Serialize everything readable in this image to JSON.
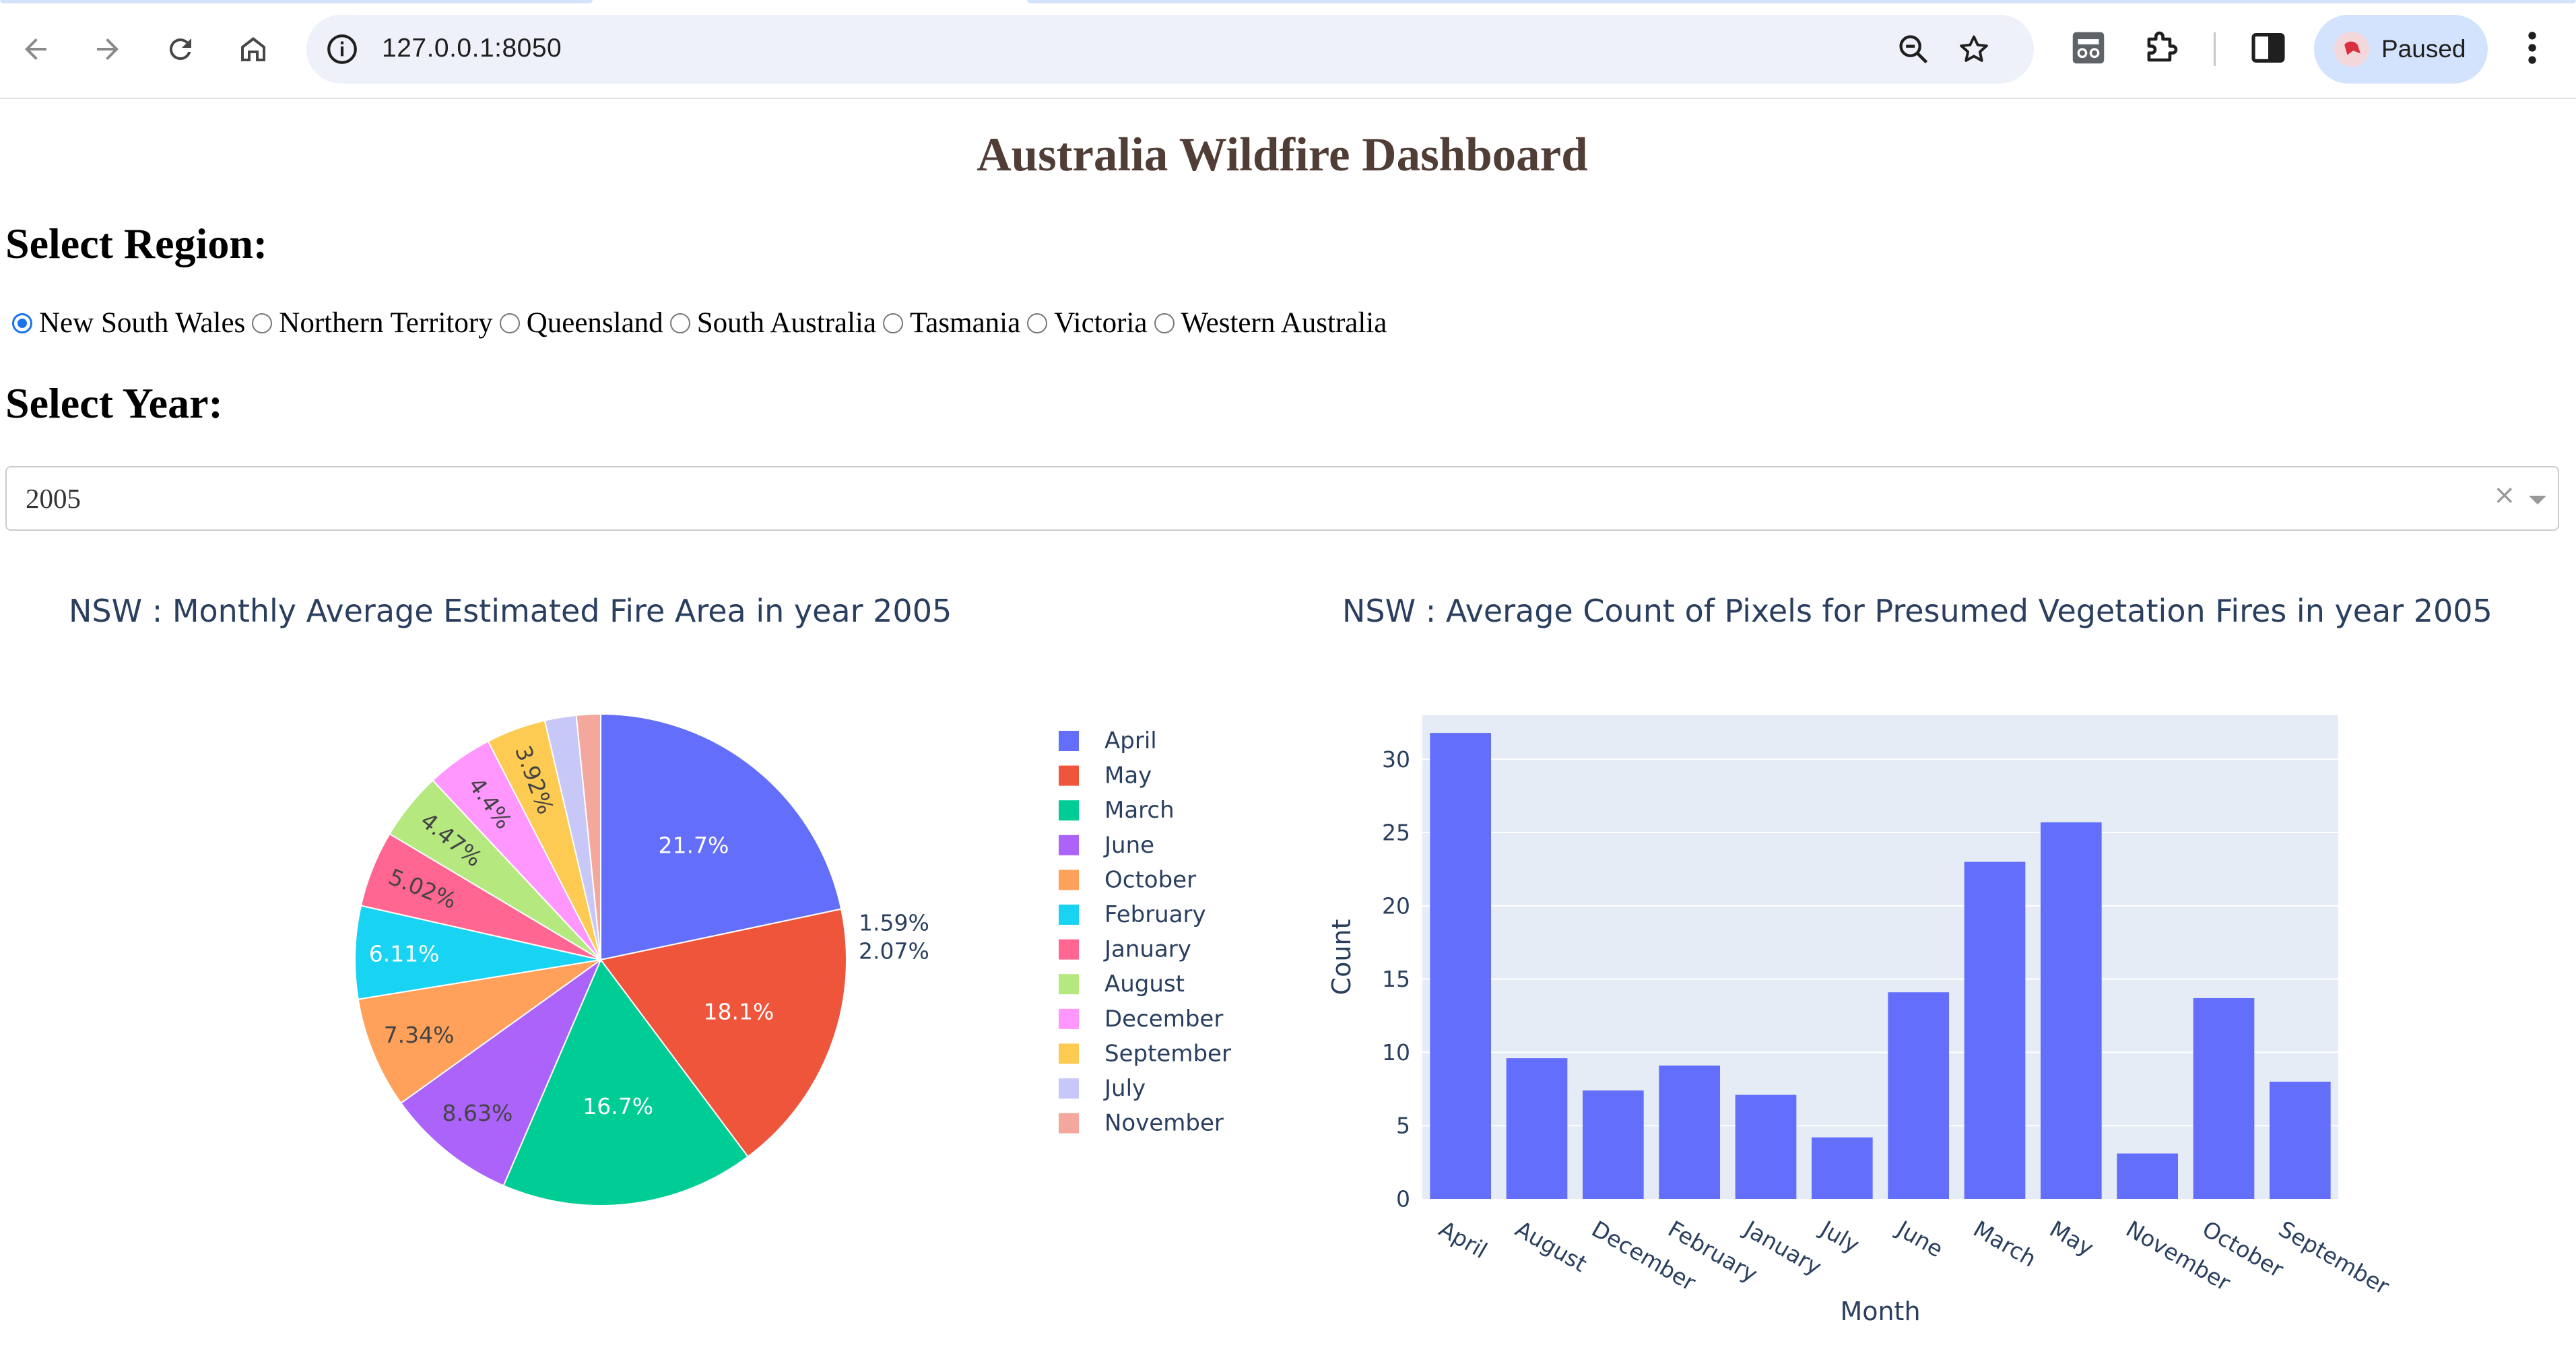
{
  "browser": {
    "url": "127.0.0.1:8050",
    "profile_label": "Paused",
    "icons": [
      "back-icon",
      "forward-icon",
      "reload-icon",
      "home-icon",
      "site-info-icon",
      "zoom-icon",
      "bookmark-star-icon",
      "incognito-extension-icon",
      "extensions-puzzle-icon",
      "side-panel-icon",
      "kebab-menu-icon"
    ]
  },
  "dashboard": {
    "title": "Australia Wildfire Dashboard",
    "region_heading": "Select Region:",
    "regions": [
      "New South Wales",
      "Northern Territory",
      "Queensland",
      "South Australia",
      "Tasmania",
      "Victoria",
      "Western Australia"
    ],
    "selected_region": "New South Wales",
    "year_heading": "Select Year:",
    "year_value": "2005",
    "clear_glyph": "×"
  },
  "chart_data": [
    {
      "type": "pie",
      "title": "NSW : Monthly Average Estimated Fire Area in year 2005",
      "labels": [
        "April",
        "May",
        "March",
        "June",
        "October",
        "February",
        "January",
        "August",
        "December",
        "September",
        "July",
        "November"
      ],
      "percents": [
        21.7,
        18.1,
        16.7,
        8.63,
        7.34,
        6.11,
        5.02,
        4.47,
        4.4,
        3.92,
        2.07,
        1.59
      ],
      "percent_labels": [
        "21.7%",
        "18.1%",
        "16.7%",
        "8.63%",
        "7.34%",
        "6.11%",
        "5.02%",
        "4.47%",
        "4.4%",
        "3.92%",
        "2.07%",
        "1.59%"
      ],
      "colors": [
        "#636efa",
        "#ef553b",
        "#00cc96",
        "#ab63fa",
        "#ffa15a",
        "#19d3f3",
        "#ff6692",
        "#b6e880",
        "#ff97ff",
        "#fecb52",
        "#c8c8f8",
        "#f4a79c"
      ],
      "legend_position": "right"
    },
    {
      "type": "bar",
      "title": "NSW : Average Count of Pixels for Presumed Vegetation Fires in year 2005",
      "categories": [
        "April",
        "August",
        "December",
        "February",
        "January",
        "July",
        "June",
        "March",
        "May",
        "November",
        "October",
        "September"
      ],
      "values": [
        31.8,
        9.6,
        7.4,
        9.1,
        7.1,
        4.2,
        14.1,
        23.0,
        25.7,
        3.1,
        13.7,
        8.0
      ],
      "xlabel": "Month",
      "ylabel": "Count",
      "ylim": [
        0,
        33
      ],
      "yticks": [
        0,
        5,
        10,
        15,
        20,
        25,
        30
      ],
      "bar_color": "#636efa",
      "plot_bg": "#e5ecf6",
      "grid": true
    }
  ]
}
